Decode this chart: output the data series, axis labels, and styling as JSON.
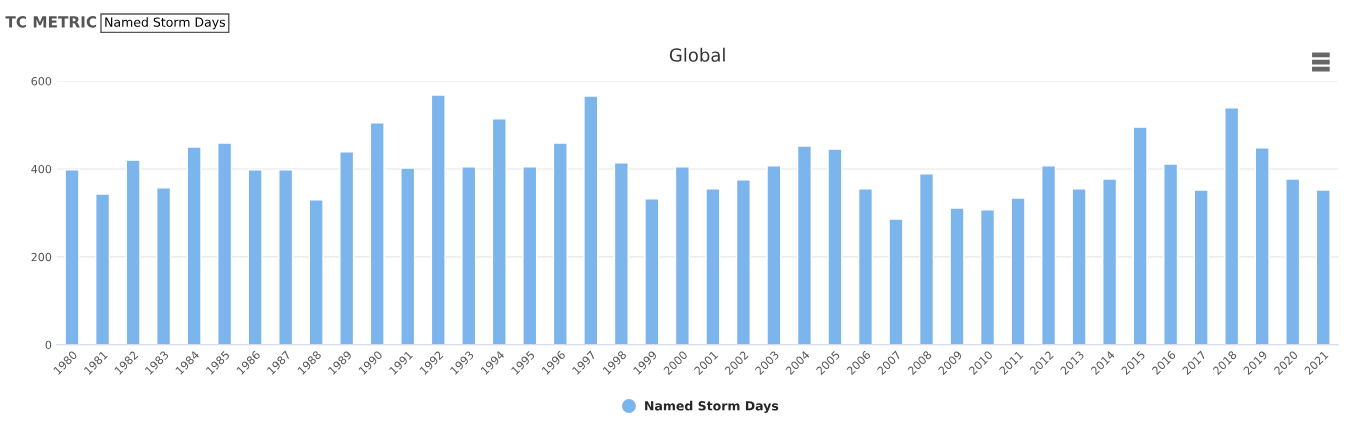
{
  "chart_data": {
    "type": "bar",
    "title": "Global",
    "annotations": [
      "TC METRIC",
      "Named Storm Days"
    ],
    "categories": [
      "1980",
      "1981",
      "1982",
      "1983",
      "1984",
      "1985",
      "1986",
      "1987",
      "1988",
      "1989",
      "1990",
      "1991",
      "1992",
      "1993",
      "1994",
      "1995",
      "1996",
      "1997",
      "1998",
      "1999",
      "2000",
      "2001",
      "2002",
      "2003",
      "2004",
      "2005",
      "2006",
      "2007",
      "2008",
      "2009",
      "2010",
      "2011",
      "2012",
      "2013",
      "2014",
      "2015",
      "2016",
      "2017",
      "2018",
      "2019",
      "2020",
      "2021"
    ],
    "series": [
      {
        "name": "Named Storm Days",
        "color": "#7cb5ec",
        "values": [
          398,
          343,
          420,
          357,
          450,
          459,
          398,
          398,
          330,
          439,
          505,
          402,
          568,
          405,
          514,
          405,
          459,
          566,
          414,
          332,
          405,
          355,
          375,
          407,
          452,
          445,
          355,
          286,
          389,
          311,
          307,
          334,
          407,
          355,
          377,
          495,
          411,
          352,
          539,
          448,
          377,
          352
        ]
      }
    ],
    "ylim": [
      0,
      600
    ],
    "yticks": [
      0,
      200,
      400,
      600
    ],
    "grid": "y",
    "legend": "bottom",
    "marker": "circle"
  }
}
